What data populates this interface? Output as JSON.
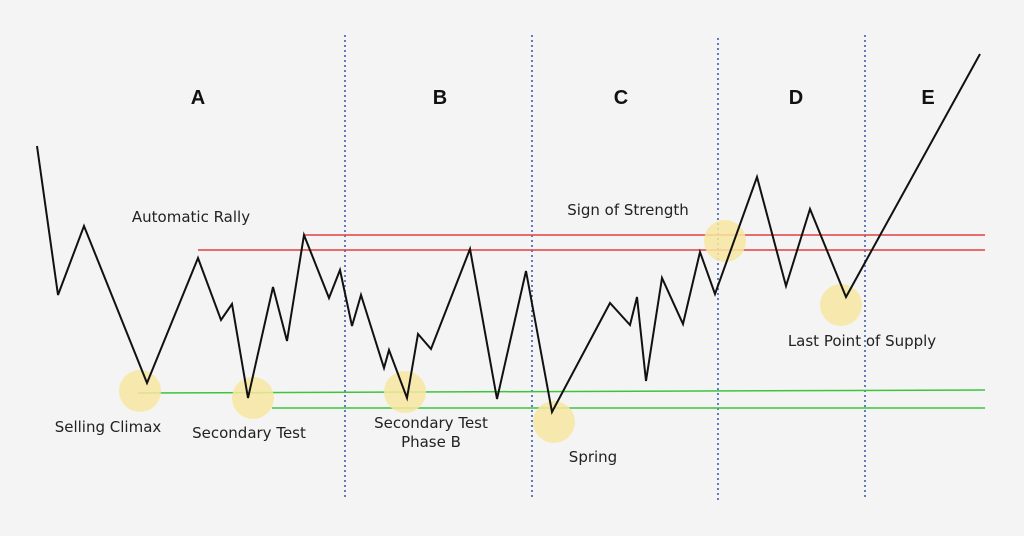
{
  "colors": {
    "background": "#f4f4f4",
    "price_line": "#111111",
    "resistance_line": "#e04040",
    "support_line": "#3cc43c",
    "phase_divider": "#3a5fb0",
    "highlight": "#f7e6a0"
  },
  "phases": [
    {
      "label": "A"
    },
    {
      "label": "B"
    },
    {
      "label": "C"
    },
    {
      "label": "D"
    },
    {
      "label": "E"
    }
  ],
  "events": {
    "automatic_rally": "Automatic Rally",
    "sign_of_strength": "Sign of Strength",
    "selling_climax": "Selling Climax",
    "secondary_test": "Secondary Test",
    "secondary_test_phase_b_line1": "Secondary Test",
    "secondary_test_phase_b_line2": "Phase B",
    "spring": "Spring",
    "last_point_of_supply": "Last Point of Supply"
  }
}
